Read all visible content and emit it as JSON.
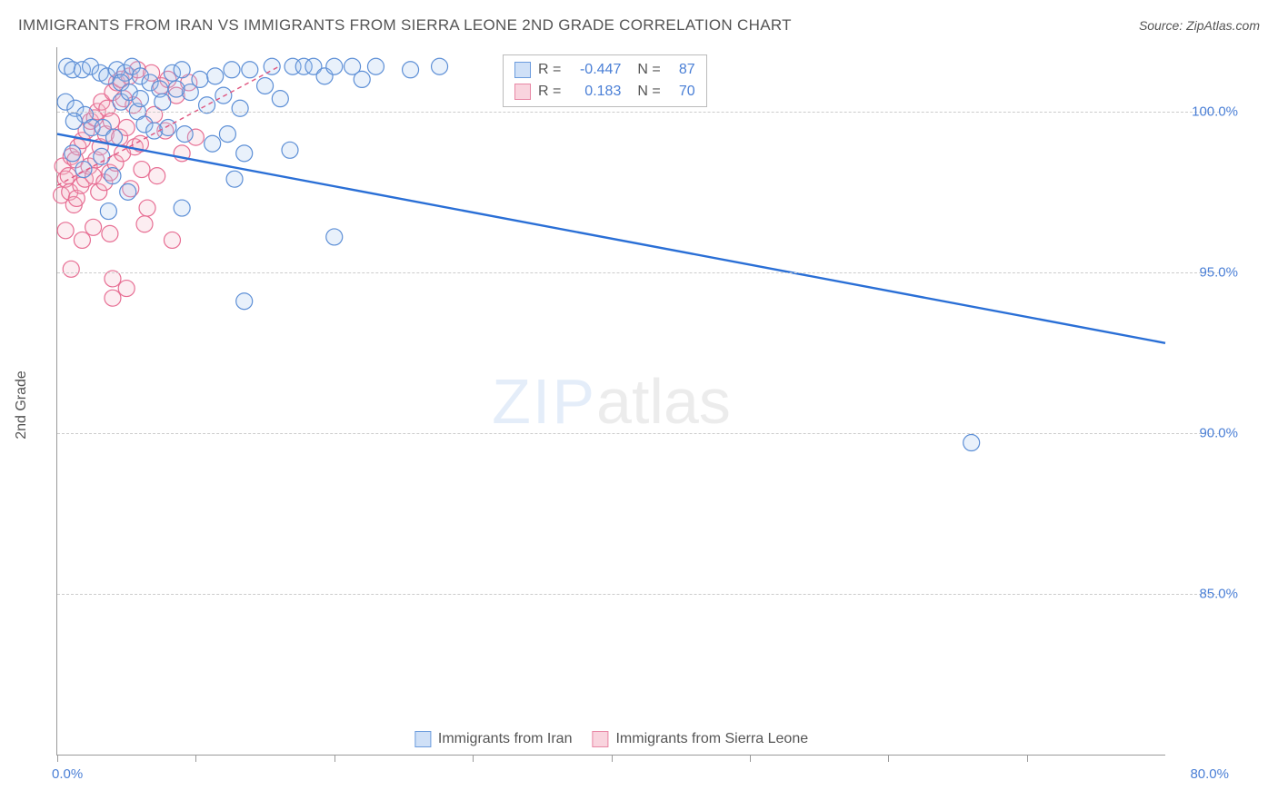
{
  "title": "IMMIGRANTS FROM IRAN VS IMMIGRANTS FROM SIERRA LEONE 2ND GRADE CORRELATION CHART",
  "source": "Source: ZipAtlas.com",
  "watermark": {
    "zip": "ZIP",
    "atlas": "atlas"
  },
  "chart": {
    "type": "scatter",
    "y_axis_label": "2nd Grade",
    "x_range": [
      0,
      80
    ],
    "y_range": [
      80,
      102
    ],
    "x_ticks": [
      0,
      10,
      20,
      30,
      40,
      50,
      60,
      70
    ],
    "x_tick_labels": {
      "0": "0.0%",
      "80": "80.0%"
    },
    "y_gridlines": [
      85,
      90,
      95,
      100
    ],
    "y_tick_labels": [
      "85.0%",
      "90.0%",
      "95.0%",
      "100.0%"
    ],
    "background_color": "#ffffff",
    "grid_color": "#cccccc",
    "axis_color": "#9a9a9a",
    "tick_label_color": "#4a7fd6",
    "marker_radius": 9,
    "marker_stroke_width": 1.2,
    "marker_fill_opacity": 0.25,
    "series": [
      {
        "name": "Immigrants from Iran",
        "color_fill": "#a9c8ef",
        "color_stroke": "#5d8fd6",
        "swatch_fill": "#cfe0f7",
        "swatch_border": "#6b9bdd",
        "r_value": "-0.447",
        "n_value": "87",
        "trend": {
          "x1": 0,
          "y1": 99.3,
          "x2": 80,
          "y2": 92.8,
          "stroke": "#2a6fd6",
          "width": 2.4,
          "dash": ""
        },
        "points": [
          [
            0.7,
            101.4
          ],
          [
            1.1,
            101.3
          ],
          [
            1.8,
            101.3
          ],
          [
            2.4,
            101.4
          ],
          [
            3.1,
            101.2
          ],
          [
            3.6,
            101.1
          ],
          [
            4.3,
            101.3
          ],
          [
            4.9,
            101.2
          ],
          [
            5.4,
            101.4
          ],
          [
            6.0,
            101.1
          ],
          [
            6.7,
            100.9
          ],
          [
            7.4,
            100.7
          ],
          [
            8.3,
            101.2
          ],
          [
            9.0,
            101.3
          ],
          [
            9.6,
            100.6
          ],
          [
            10.3,
            101.0
          ],
          [
            10.8,
            100.2
          ],
          [
            11.4,
            101.1
          ],
          [
            12.0,
            100.5
          ],
          [
            12.6,
            101.3
          ],
          [
            13.2,
            100.1
          ],
          [
            13.9,
            101.3
          ],
          [
            15.0,
            100.8
          ],
          [
            15.5,
            101.4
          ],
          [
            16.1,
            100.4
          ],
          [
            17.0,
            101.4
          ],
          [
            17.8,
            101.4
          ],
          [
            18.5,
            101.4
          ],
          [
            19.3,
            101.1
          ],
          [
            20.0,
            101.4
          ],
          [
            21.3,
            101.4
          ],
          [
            22.0,
            101.0
          ],
          [
            23.0,
            101.4
          ],
          [
            25.5,
            101.3
          ],
          [
            27.6,
            101.4
          ],
          [
            4.6,
            100.3
          ],
          [
            5.8,
            100.0
          ],
          [
            6.3,
            99.6
          ],
          [
            7.0,
            99.4
          ],
          [
            8.0,
            99.5
          ],
          [
            9.2,
            99.3
          ],
          [
            11.2,
            99.0
          ],
          [
            12.3,
            99.3
          ],
          [
            13.5,
            98.7
          ],
          [
            1.1,
            98.7
          ],
          [
            1.9,
            98.2
          ],
          [
            3.2,
            98.6
          ],
          [
            4.0,
            98.0
          ],
          [
            5.1,
            97.5
          ],
          [
            9.0,
            97.0
          ],
          [
            3.7,
            96.9
          ],
          [
            0.6,
            100.3
          ],
          [
            1.3,
            100.1
          ],
          [
            2.0,
            99.9
          ],
          [
            2.5,
            99.5
          ],
          [
            3.3,
            99.5
          ],
          [
            4.1,
            99.2
          ],
          [
            7.6,
            100.3
          ],
          [
            8.6,
            100.7
          ],
          [
            16.8,
            98.8
          ],
          [
            12.8,
            97.9
          ],
          [
            4.6,
            100.9
          ],
          [
            5.2,
            100.6
          ],
          [
            6.0,
            100.4
          ],
          [
            20.0,
            96.1
          ],
          [
            13.5,
            94.1
          ],
          [
            66.0,
            89.7
          ],
          [
            1.2,
            99.7
          ]
        ]
      },
      {
        "name": "Immigrants from Sierra Leone",
        "color_fill": "#f5b9c9",
        "color_stroke": "#e76f94",
        "swatch_fill": "#f9d4de",
        "swatch_border": "#e887a5",
        "r_value": "0.183",
        "n_value": "70",
        "trend": {
          "x1": 0,
          "y1": 97.7,
          "x2": 16,
          "y2": 101.4,
          "stroke": "#e05680",
          "width": 1.4,
          "dash": "5,4"
        },
        "points": [
          [
            0.3,
            97.4
          ],
          [
            0.4,
            98.3
          ],
          [
            0.6,
            97.9
          ],
          [
            0.8,
            98.0
          ],
          [
            0.9,
            97.5
          ],
          [
            1.0,
            98.6
          ],
          [
            1.2,
            97.1
          ],
          [
            1.3,
            98.5
          ],
          [
            1.4,
            97.3
          ],
          [
            1.5,
            98.9
          ],
          [
            1.7,
            97.7
          ],
          [
            1.8,
            99.1
          ],
          [
            2.0,
            97.9
          ],
          [
            2.1,
            99.4
          ],
          [
            2.3,
            98.3
          ],
          [
            2.4,
            99.7
          ],
          [
            2.6,
            98.0
          ],
          [
            2.7,
            99.8
          ],
          [
            2.8,
            98.5
          ],
          [
            2.9,
            100.0
          ],
          [
            3.0,
            97.5
          ],
          [
            3.1,
            98.9
          ],
          [
            3.2,
            100.3
          ],
          [
            3.4,
            97.8
          ],
          [
            3.5,
            99.3
          ],
          [
            3.6,
            100.1
          ],
          [
            3.8,
            98.1
          ],
          [
            3.9,
            99.7
          ],
          [
            4.0,
            100.6
          ],
          [
            4.2,
            98.4
          ],
          [
            4.3,
            100.9
          ],
          [
            4.5,
            99.2
          ],
          [
            4.6,
            101.0
          ],
          [
            4.7,
            98.7
          ],
          [
            4.8,
            100.4
          ],
          [
            5.0,
            99.5
          ],
          [
            5.2,
            101.1
          ],
          [
            5.3,
            97.6
          ],
          [
            5.5,
            100.2
          ],
          [
            5.6,
            98.9
          ],
          [
            5.8,
            101.3
          ],
          [
            6.0,
            99.0
          ],
          [
            6.1,
            98.2
          ],
          [
            6.3,
            96.5
          ],
          [
            6.5,
            97.0
          ],
          [
            6.8,
            101.2
          ],
          [
            7.0,
            99.9
          ],
          [
            7.2,
            98.0
          ],
          [
            7.5,
            100.8
          ],
          [
            7.8,
            99.4
          ],
          [
            8.0,
            101.0
          ],
          [
            8.3,
            96.0
          ],
          [
            8.6,
            100.5
          ],
          [
            9.0,
            98.7
          ],
          [
            9.5,
            100.9
          ],
          [
            10.0,
            99.2
          ],
          [
            3.8,
            96.2
          ],
          [
            4.0,
            94.2
          ],
          [
            4.0,
            94.8
          ],
          [
            5.0,
            94.5
          ],
          [
            1.8,
            96.0
          ],
          [
            2.6,
            96.4
          ],
          [
            0.6,
            96.3
          ],
          [
            1.0,
            95.1
          ]
        ]
      }
    ],
    "legend_bottom": [
      "Immigrants from Iran",
      "Immigrants from Sierra Leone"
    ]
  }
}
